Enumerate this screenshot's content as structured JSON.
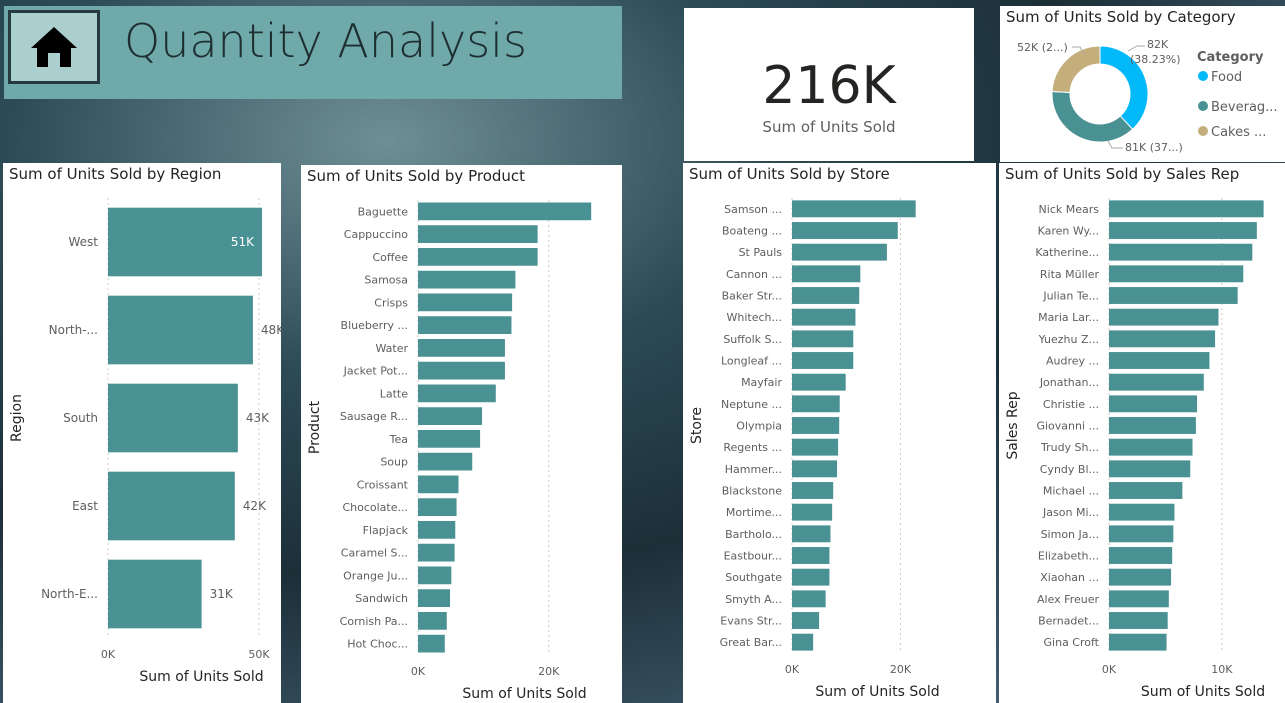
{
  "header": {
    "title": "Quantity Analysis",
    "home_icon": "home-icon"
  },
  "kpi": {
    "value": "216K",
    "label": "Sum of Units Sold"
  },
  "colors": {
    "bar": "#4a9194",
    "food": "#01b8f8",
    "beverages": "#4a9194",
    "cakes": "#c4ae7c"
  },
  "category": {
    "title": "Sum of Units Sold by Category",
    "legend_title": "Category",
    "chart_data": {
      "type": "pie",
      "donut": true,
      "slices": [
        {
          "name": "Food",
          "legend": "Food",
          "value": 82,
          "label1": "82K",
          "label2": "(38.23%)",
          "color": "#01b8f8"
        },
        {
          "name": "Beverages",
          "legend": "Beverag...",
          "value": 81,
          "label1": "81K (37...)",
          "label2": "",
          "color": "#4a9194"
        },
        {
          "name": "Cakes",
          "legend": "Cakes ...",
          "value": 52,
          "label1": "52K (2...)",
          "label2": "",
          "color": "#c4ae7c"
        }
      ]
    }
  },
  "region": {
    "title": "Sum of Units Sold by Region",
    "chart_data": {
      "type": "bar",
      "orientation": "horizontal",
      "xlabel": "Sum of Units Sold",
      "ylabel": "Region",
      "xlim": [
        0,
        52
      ],
      "ticks": [
        "0K",
        "50K"
      ],
      "tick_values": [
        0,
        50
      ],
      "categories": [
        "West",
        "North-...",
        "South",
        "East",
        "North-E..."
      ],
      "values": [
        51,
        48,
        43,
        42,
        31
      ],
      "data_labels": [
        "51K",
        "48K",
        "43K",
        "42K",
        "31K"
      ]
    }
  },
  "product": {
    "title": "Sum of Units Sold by Product",
    "chart_data": {
      "type": "bar",
      "orientation": "horizontal",
      "xlabel": "Sum of Units Sold",
      "ylabel": "Product",
      "xlim": [
        0,
        28
      ],
      "ticks": [
        "0K",
        "20K"
      ],
      "tick_values": [
        0,
        20
      ],
      "categories": [
        "Baguette",
        "Cappuccino",
        "Coffee",
        "Samosa",
        "Crisps",
        "Blueberry ...",
        "Water",
        "Jacket Pot...",
        "Latte",
        "Sausage R...",
        "Tea",
        "Soup",
        "Croissant",
        "Chocolate...",
        "Flapjack",
        "Caramel S...",
        "Orange Ju...",
        "Sandwich",
        "Cornish Pa...",
        "Hot Choc..."
      ],
      "values": [
        26.5,
        18.3,
        18.3,
        14.9,
        14.4,
        14.3,
        13.3,
        13.3,
        11.9,
        9.8,
        9.5,
        8.3,
        6.2,
        5.9,
        5.7,
        5.6,
        5.1,
        4.9,
        4.4,
        4.1
      ]
    }
  },
  "store": {
    "title": "Sum of Units Sold by Store",
    "chart_data": {
      "type": "bar",
      "orientation": "horizontal",
      "xlabel": "Sum of Units Sold",
      "ylabel": "Store",
      "xlim": [
        0,
        26
      ],
      "ticks": [
        "0K",
        "20K"
      ],
      "tick_values": [
        0,
        20
      ],
      "categories": [
        "Samson ...",
        "Boateng ...",
        "St Pauls",
        "Cannon ...",
        "Baker Str...",
        "Whitech...",
        "Suffolk S...",
        "Longleaf ...",
        "Mayfair",
        "Neptune ...",
        "Olympia",
        "Regents ...",
        "Hammer...",
        "Blackstone",
        "Mortime...",
        "Bartholo...",
        "Eastbour...",
        "Southgate",
        "Smyth A...",
        "Evans Str...",
        "Great Bar..."
      ],
      "values": [
        22.8,
        19.5,
        17.5,
        12.6,
        12.4,
        11.7,
        11.3,
        11.3,
        9.9,
        8.8,
        8.7,
        8.5,
        8.3,
        7.6,
        7.4,
        7.1,
        6.9,
        6.9,
        6.2,
        5.0,
        3.9
      ]
    }
  },
  "salesrep": {
    "title": "Sum of Units Sold by Sales Rep",
    "chart_data": {
      "type": "bar",
      "orientation": "horizontal",
      "xlabel": "Sum of Units Sold",
      "ylabel": "Sales Rep",
      "xlim": [
        0,
        14
      ],
      "ticks": [
        "0K",
        "10K"
      ],
      "tick_values": [
        0,
        10
      ],
      "categories": [
        "Nick Mears",
        "Karen Wy...",
        "Katherine...",
        "Rita Müller",
        "Julian Te...",
        "Maria Lar...",
        "Yuezhu Z...",
        "Audrey ...",
        "Jonathan...",
        "Christie ...",
        "Giovanni ...",
        "Trudy Sh...",
        "Cyndy Bl...",
        "Michael ...",
        "Jason Mi...",
        "Simon Ja...",
        "Elizabeth...",
        "Xiaohan ...",
        "Alex Freuer",
        "Bernadet...",
        "Gina Croft"
      ],
      "values": [
        13.7,
        13.1,
        12.7,
        11.9,
        11.4,
        9.7,
        9.4,
        8.9,
        8.4,
        7.8,
        7.7,
        7.4,
        7.2,
        6.5,
        5.8,
        5.7,
        5.6,
        5.5,
        5.3,
        5.2,
        5.1
      ]
    }
  }
}
